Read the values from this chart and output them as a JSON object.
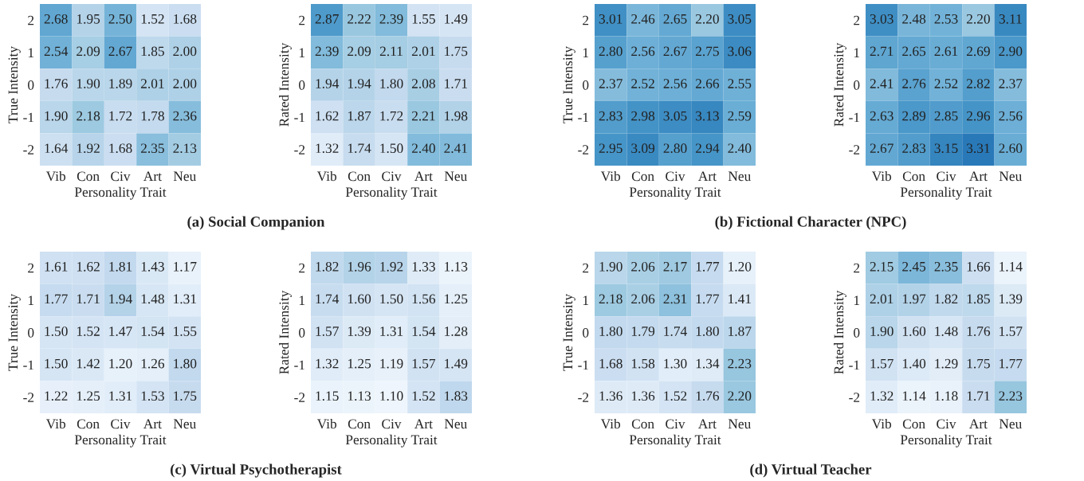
{
  "chart_data": [
    {
      "type": "heatmap",
      "xlabel": "Personality Trait",
      "ylabel": "True Intensity",
      "categories": [
        "Vib",
        "Con",
        "Civ",
        "Art",
        "Neu"
      ],
      "y_categories": [
        "2",
        "1",
        "0",
        "-1",
        "-2"
      ],
      "data_labels": true,
      "annotations": [
        "(a) Social Companion"
      ],
      "cells": [
        [
          2.68,
          1.95,
          2.5,
          1.52,
          1.68
        ],
        [
          2.54,
          2.09,
          2.67,
          1.85,
          2.0
        ],
        [
          1.76,
          1.9,
          1.89,
          2.01,
          2.0
        ],
        [
          1.9,
          2.18,
          1.72,
          1.78,
          2.36
        ],
        [
          1.64,
          1.92,
          1.68,
          2.35,
          2.13
        ]
      ],
      "cell_labels": [
        [
          "2.68",
          "1.95",
          "2.50",
          "1.52",
          "1.68"
        ],
        [
          "2.54",
          "2.09",
          "2.67",
          "1.85",
          "2.00"
        ],
        [
          "1.76",
          "1.90",
          "1.89",
          "2.01",
          "2.00"
        ],
        [
          "1.90",
          "2.18",
          "1.72",
          "1.78",
          "2.36"
        ],
        [
          "1.64",
          "1.92",
          "1.68",
          "2.35",
          "2.13"
        ]
      ]
    },
    {
      "type": "heatmap",
      "xlabel": "Personality Trait",
      "ylabel": "Rated Intensity",
      "categories": [
        "Vib",
        "Con",
        "Civ",
        "Art",
        "Neu"
      ],
      "y_categories": [
        "2",
        "1",
        "0",
        "-1",
        "-2"
      ],
      "data_labels": true,
      "cells": [
        [
          2.87,
          2.22,
          2.39,
          1.55,
          1.49
        ],
        [
          2.39,
          2.09,
          2.11,
          2.01,
          1.75
        ],
        [
          1.94,
          1.94,
          1.8,
          2.08,
          1.71
        ],
        [
          1.62,
          1.87,
          1.72,
          2.21,
          1.98
        ],
        [
          1.32,
          1.74,
          1.5,
          2.4,
          2.41
        ]
      ],
      "cell_labels": [
        [
          "2.87",
          "2.22",
          "2.39",
          "1.55",
          "1.49"
        ],
        [
          "2.39",
          "2.09",
          "2.11",
          "2.01",
          "1.75"
        ],
        [
          "1.94",
          "1.94",
          "1.80",
          "2.08",
          "1.71"
        ],
        [
          "1.62",
          "1.87",
          "1.72",
          "2.21",
          "1.98"
        ],
        [
          "1.32",
          "1.74",
          "1.50",
          "2.40",
          "2.41"
        ]
      ]
    },
    {
      "type": "heatmap",
      "xlabel": "Personality Trait",
      "ylabel": "True Intensity",
      "categories": [
        "Vib",
        "Con",
        "Civ",
        "Art",
        "Neu"
      ],
      "y_categories": [
        "2",
        "1",
        "0",
        "-1",
        "-2"
      ],
      "data_labels": true,
      "annotations": [
        "(b) Fictional Character (NPC)"
      ],
      "cells": [
        [
          3.01,
          2.46,
          2.65,
          2.2,
          3.05
        ],
        [
          2.8,
          2.56,
          2.67,
          2.75,
          3.06
        ],
        [
          2.37,
          2.52,
          2.56,
          2.66,
          2.55
        ],
        [
          2.83,
          2.98,
          3.05,
          3.13,
          2.59
        ],
        [
          2.95,
          3.09,
          2.8,
          2.94,
          2.4
        ]
      ],
      "cell_labels": [
        [
          "3.01",
          "2.46",
          "2.65",
          "2.20",
          "3.05"
        ],
        [
          "2.80",
          "2.56",
          "2.67",
          "2.75",
          "3.06"
        ],
        [
          "2.37",
          "2.52",
          "2.56",
          "2.66",
          "2.55"
        ],
        [
          "2.83",
          "2.98",
          "3.05",
          "3.13",
          "2.59"
        ],
        [
          "2.95",
          "3.09",
          "2.80",
          "2.94",
          "2.40"
        ]
      ]
    },
    {
      "type": "heatmap",
      "xlabel": "Personality Trait",
      "ylabel": "Rated Intensity",
      "categories": [
        "Vib",
        "Con",
        "Civ",
        "Art",
        "Neu"
      ],
      "y_categories": [
        "2",
        "1",
        "0",
        "-1",
        "-2"
      ],
      "data_labels": true,
      "cells": [
        [
          3.03,
          2.48,
          2.53,
          2.2,
          3.11
        ],
        [
          2.71,
          2.65,
          2.61,
          2.69,
          2.9
        ],
        [
          2.41,
          2.76,
          2.52,
          2.82,
          2.37
        ],
        [
          2.63,
          2.89,
          2.85,
          2.96,
          2.56
        ],
        [
          2.67,
          2.83,
          3.15,
          3.31,
          2.6
        ]
      ],
      "cell_labels": [
        [
          "3.03",
          "2.48",
          "2.53",
          "2.20",
          "3.11"
        ],
        [
          "2.71",
          "2.65",
          "2.61",
          "2.69",
          "2.90"
        ],
        [
          "2.41",
          "2.76",
          "2.52",
          "2.82",
          "2.37"
        ],
        [
          "2.63",
          "2.89",
          "2.85",
          "2.96",
          "2.56"
        ],
        [
          "2.67",
          "2.83",
          "3.15",
          "3.31",
          "2.60"
        ]
      ]
    },
    {
      "type": "heatmap",
      "xlabel": "Personality Trait",
      "ylabel": "True Intensity",
      "categories": [
        "Vib",
        "Con",
        "Civ",
        "Art",
        "Neu"
      ],
      "y_categories": [
        "2",
        "1",
        "0",
        "-1",
        "-2"
      ],
      "data_labels": true,
      "annotations": [
        "(c) Virtual Psychotherapist"
      ],
      "cells": [
        [
          1.61,
          1.62,
          1.81,
          1.43,
          1.17
        ],
        [
          1.77,
          1.71,
          1.94,
          1.48,
          1.31
        ],
        [
          1.5,
          1.52,
          1.47,
          1.54,
          1.55
        ],
        [
          1.5,
          1.42,
          1.2,
          1.26,
          1.8
        ],
        [
          1.22,
          1.25,
          1.31,
          1.53,
          1.75
        ]
      ],
      "cell_labels": [
        [
          "1.61",
          "1.62",
          "1.81",
          "1.43",
          "1.17"
        ],
        [
          "1.77",
          "1.71",
          "1.94",
          "1.48",
          "1.31"
        ],
        [
          "1.50",
          "1.52",
          "1.47",
          "1.54",
          "1.55"
        ],
        [
          "1.50",
          "1.42",
          "1.20",
          "1.26",
          "1.80"
        ],
        [
          "1.22",
          "1.25",
          "1.31",
          "1.53",
          "1.75"
        ]
      ]
    },
    {
      "type": "heatmap",
      "xlabel": "Personality Trait",
      "ylabel": "Rated Intensity",
      "categories": [
        "Vib",
        "Con",
        "Civ",
        "Art",
        "Neu"
      ],
      "y_categories": [
        "2",
        "1",
        "0",
        "-1",
        "-2"
      ],
      "data_labels": true,
      "cells": [
        [
          1.82,
          1.96,
          1.92,
          1.33,
          1.13
        ],
        [
          1.74,
          1.6,
          1.5,
          1.56,
          1.25
        ],
        [
          1.57,
          1.39,
          1.31,
          1.54,
          1.28
        ],
        [
          1.32,
          1.25,
          1.19,
          1.57,
          1.49
        ],
        [
          1.15,
          1.13,
          1.1,
          1.52,
          1.83
        ]
      ],
      "cell_labels": [
        [
          "1.82",
          "1.96",
          "1.92",
          "1.33",
          "1.13"
        ],
        [
          "1.74",
          "1.60",
          "1.50",
          "1.56",
          "1.25"
        ],
        [
          "1.57",
          "1.39",
          "1.31",
          "1.54",
          "1.28"
        ],
        [
          "1.32",
          "1.25",
          "1.19",
          "1.57",
          "1.49"
        ],
        [
          "1.15",
          "1.13",
          "1.10",
          "1.52",
          "1.83"
        ]
      ]
    },
    {
      "type": "heatmap",
      "xlabel": "Personality Trait",
      "ylabel": "True Intensity",
      "categories": [
        "Vib",
        "Con",
        "Civ",
        "Art",
        "Neu"
      ],
      "y_categories": [
        "2",
        "1",
        "0",
        "-1",
        "-2"
      ],
      "data_labels": true,
      "annotations": [
        "(d) Virtual Teacher"
      ],
      "cells": [
        [
          1.9,
          2.06,
          2.17,
          1.77,
          1.2
        ],
        [
          2.18,
          2.06,
          2.31,
          1.77,
          1.41
        ],
        [
          1.8,
          1.79,
          1.74,
          1.8,
          1.87
        ],
        [
          1.68,
          1.58,
          1.3,
          1.34,
          2.23
        ],
        [
          1.36,
          1.36,
          1.52,
          1.76,
          2.2
        ]
      ],
      "cell_labels": [
        [
          "1.90",
          "2.06",
          "2.17",
          "1.77",
          "1.20"
        ],
        [
          "2.18",
          "2.06",
          "2.31",
          "1.77",
          "1.41"
        ],
        [
          "1.80",
          "1.79",
          "1.74",
          "1.80",
          "1.87"
        ],
        [
          "1.68",
          "1.58",
          "1.30",
          "1.34",
          "2.23"
        ],
        [
          "1.36",
          "1.36",
          "1.52",
          "1.76",
          "2.20"
        ]
      ]
    },
    {
      "type": "heatmap",
      "xlabel": "Personality Trait",
      "ylabel": "Rated Intensity",
      "categories": [
        "Vib",
        "Con",
        "Civ",
        "Art",
        "Neu"
      ],
      "y_categories": [
        "2",
        "1",
        "0",
        "-1",
        "-2"
      ],
      "data_labels": true,
      "cells": [
        [
          2.15,
          2.45,
          2.35,
          1.66,
          1.14
        ],
        [
          2.01,
          1.97,
          1.82,
          1.85,
          1.39
        ],
        [
          1.9,
          1.6,
          1.48,
          1.76,
          1.57
        ],
        [
          1.57,
          1.4,
          1.29,
          1.75,
          1.77
        ],
        [
          1.32,
          1.14,
          1.18,
          1.71,
          2.23
        ]
      ],
      "cell_labels": [
        [
          "2.15",
          "2.45",
          "2.35",
          "1.66",
          "1.14"
        ],
        [
          "2.01",
          "1.97",
          "1.82",
          "1.85",
          "1.39"
        ],
        [
          "1.90",
          "1.60",
          "1.48",
          "1.76",
          "1.57"
        ],
        [
          "1.57",
          "1.40",
          "1.29",
          "1.75",
          "1.77"
        ],
        [
          "1.32",
          "1.14",
          "1.18",
          "1.71",
          "2.23"
        ]
      ]
    }
  ]
}
